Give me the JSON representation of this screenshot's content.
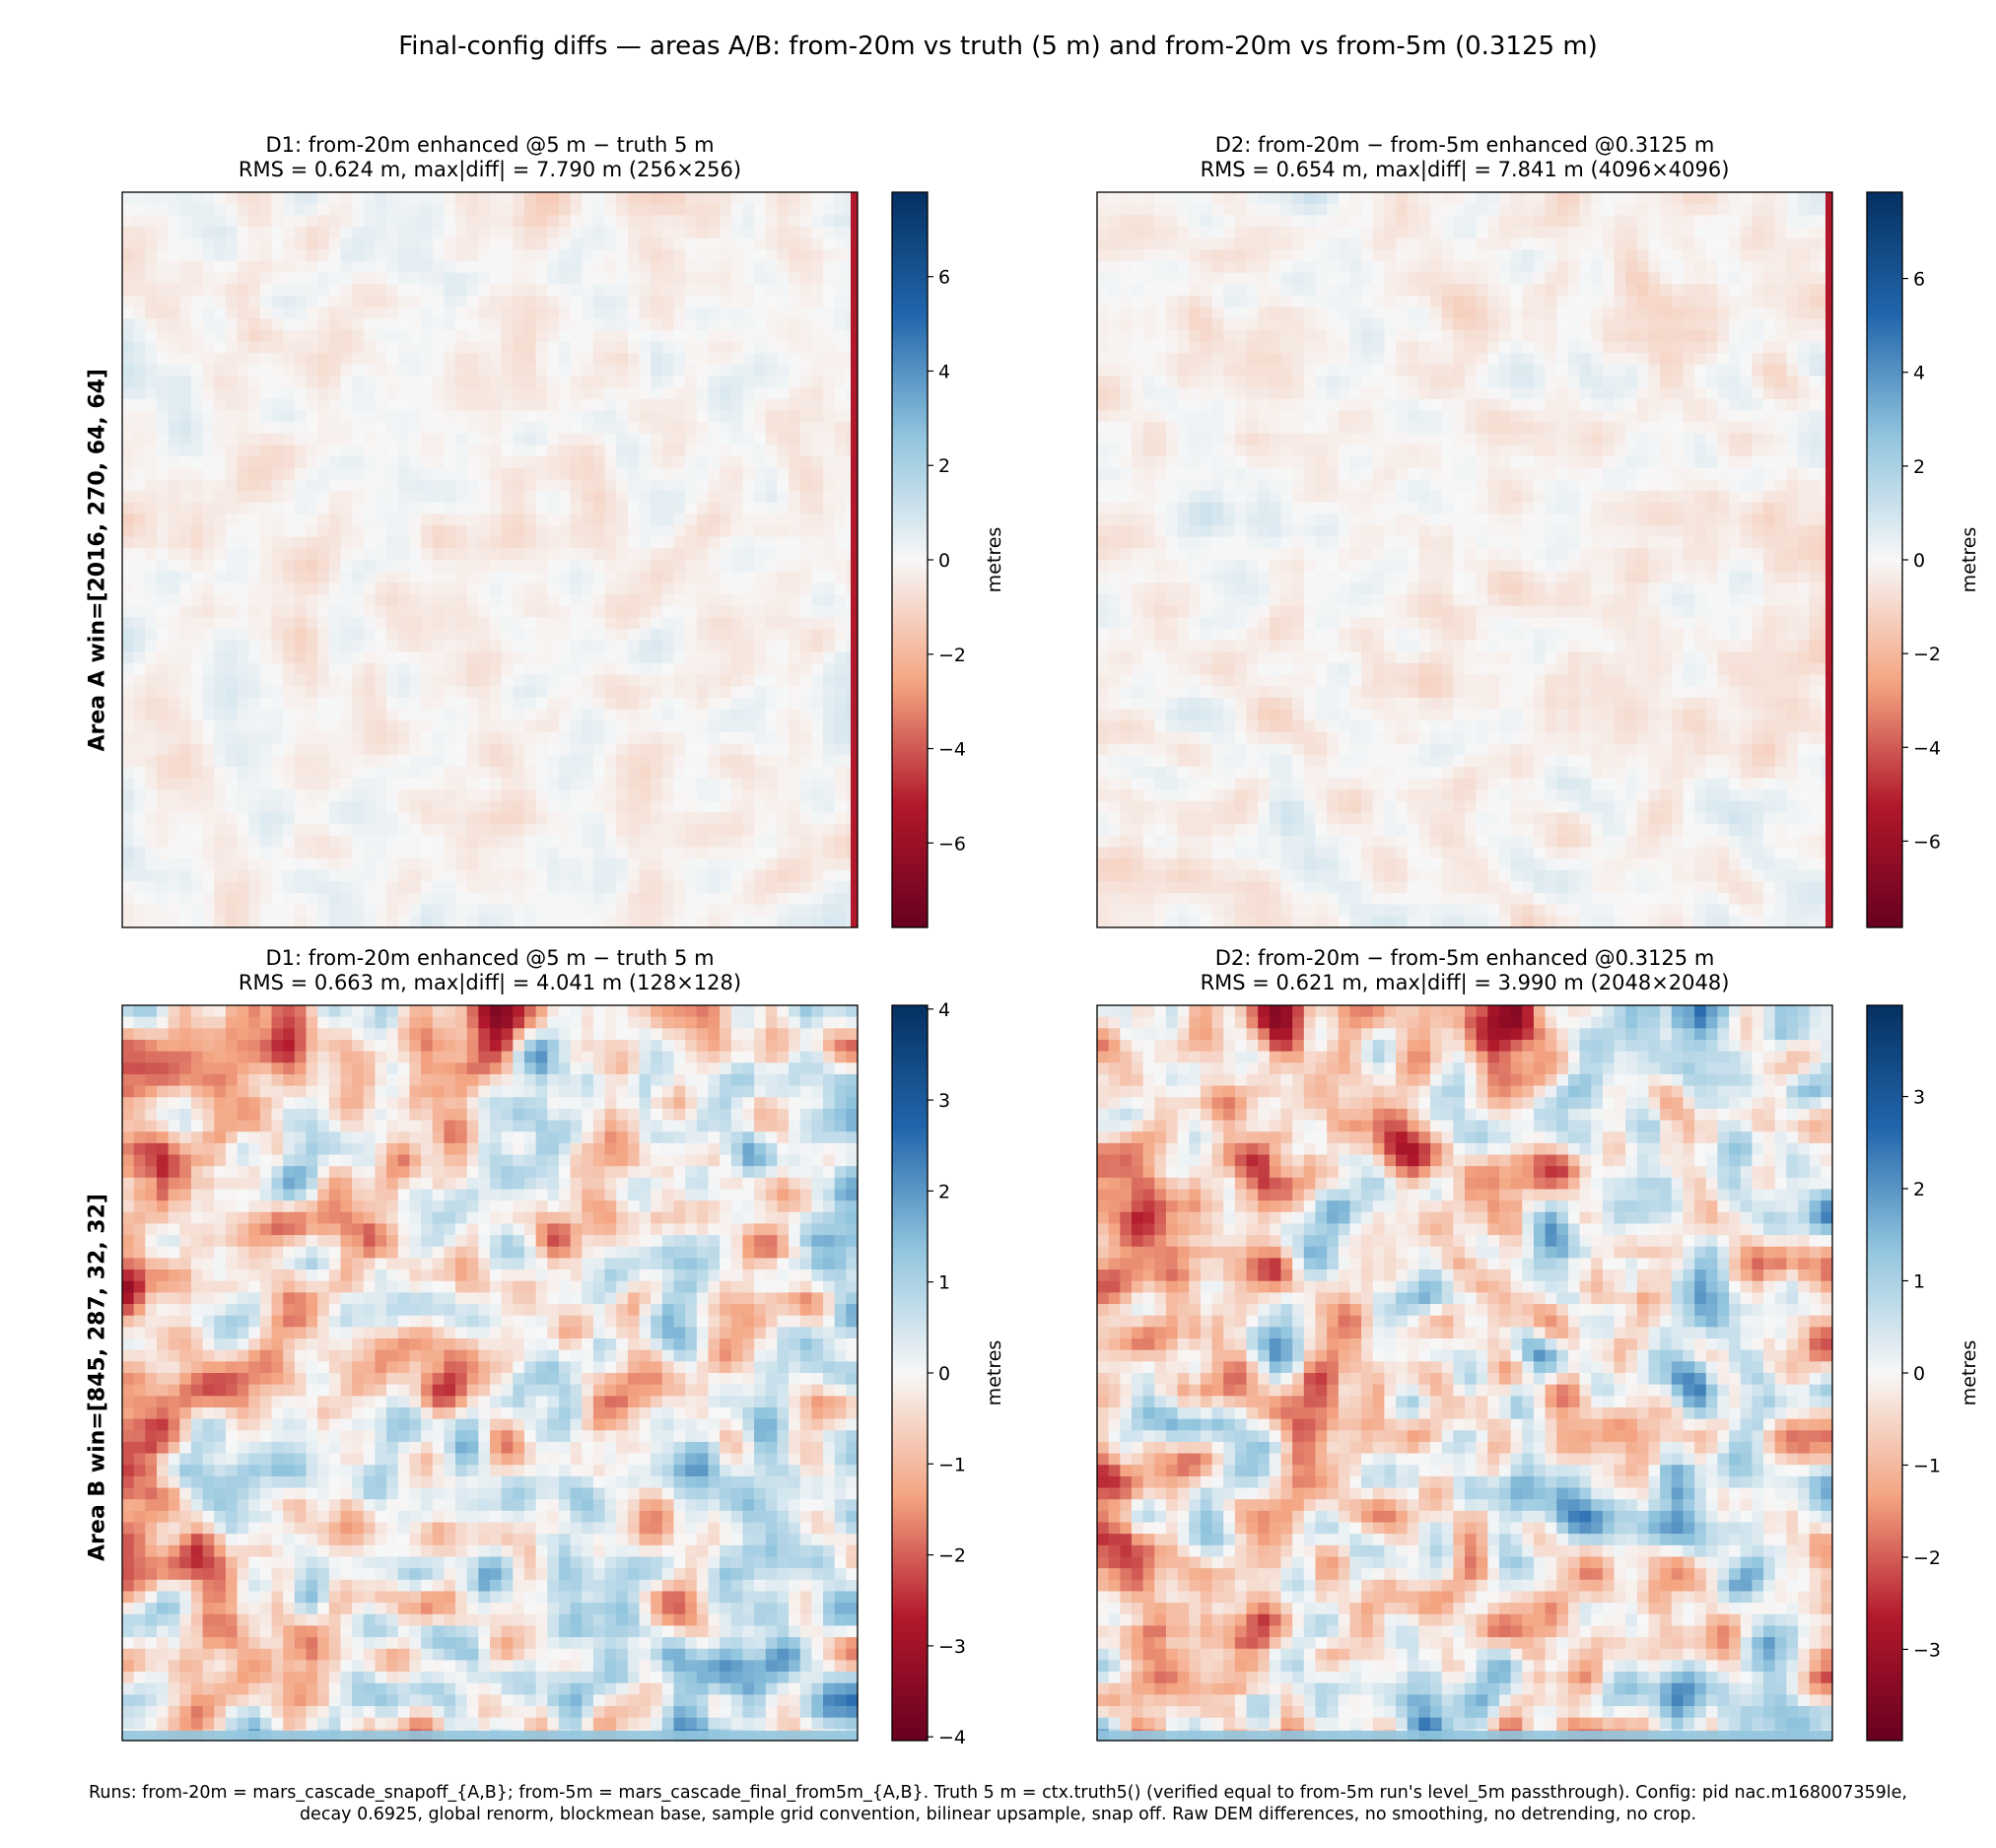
{
  "figure": {
    "suptitle": "Final-config diffs — areas A/B: from-20m vs truth (5 m) and from-20m vs from-5m (0.3125 m)",
    "footer_line1": "Runs: from-20m = mars_cascade_snapoff_{A,B}; from-5m = mars_cascade_final_from5m_{A,B}. Truth 5 m = ctx.truth5() (verified equal to from-5m run's level_5m passthrough). Config: pid nac.m168007359le,",
    "footer_line2": "decay 0.6925, global renorm, blockmean base, sample grid convention, bilinear upsample, snap off. Raw DEM differences, no smoothing, no detrending, no crop."
  },
  "rows": [
    {
      "label": "Area A  win=[2016, 270, 64, 64]"
    },
    {
      "label": "Area B  win=[845, 287, 32, 32]"
    }
  ],
  "chart_data": [
    {
      "type": "heatmap",
      "title_line1": "D1: from-20m enhanced @5 m  −  truth 5 m",
      "title_line2": "RMS = 0.624 m, max|diff| = 7.790 m  (256×256)",
      "grid_size": [
        256,
        256
      ],
      "rms": 0.624,
      "max_abs_diff": 7.79,
      "colormap": "RdBu",
      "color_range": [
        -7.79,
        7.79
      ],
      "colorbar_label": "metres",
      "colorbar_ticks": [
        -6,
        -4,
        -2,
        0,
        2,
        4,
        6
      ],
      "colorbar_tick_labels": [
        "−6",
        "−4",
        "−2",
        "0",
        "2",
        "4",
        "6"
      ]
    },
    {
      "type": "heatmap",
      "title_line1": "D2: from-20m − from-5m enhanced @0.3125 m",
      "title_line2": "RMS = 0.654 m, max|diff| = 7.841 m  (4096×4096)",
      "grid_size": [
        4096,
        4096
      ],
      "rms": 0.654,
      "max_abs_diff": 7.841,
      "colormap": "RdBu",
      "color_range": [
        -7.841,
        7.841
      ],
      "colorbar_label": "metres",
      "colorbar_ticks": [
        -6,
        -4,
        -2,
        0,
        2,
        4,
        6
      ],
      "colorbar_tick_labels": [
        "−6",
        "−4",
        "−2",
        "0",
        "2",
        "4",
        "6"
      ]
    },
    {
      "type": "heatmap",
      "title_line1": "D1: from-20m enhanced @5 m  −  truth 5 m",
      "title_line2": "RMS = 0.663 m, max|diff| = 4.041 m  (128×128)",
      "grid_size": [
        128,
        128
      ],
      "rms": 0.663,
      "max_abs_diff": 4.041,
      "colormap": "RdBu",
      "color_range": [
        -4.041,
        4.041
      ],
      "colorbar_label": "metres",
      "colorbar_ticks": [
        -4,
        -3,
        -2,
        -1,
        0,
        1,
        2,
        3,
        4
      ],
      "colorbar_tick_labels": [
        "−4",
        "−3",
        "−2",
        "−1",
        "0",
        "1",
        "2",
        "3",
        "4"
      ]
    },
    {
      "type": "heatmap",
      "title_line1": "D2: from-20m − from-5m enhanced @0.3125 m",
      "title_line2": "RMS = 0.621 m, max|diff| = 3.990 m  (2048×2048)",
      "grid_size": [
        2048,
        2048
      ],
      "rms": 0.621,
      "max_abs_diff": 3.99,
      "colormap": "RdBu",
      "color_range": [
        -3.99,
        3.99
      ],
      "colorbar_label": "metres",
      "colorbar_ticks": [
        -3,
        -2,
        -1,
        0,
        1,
        2,
        3
      ],
      "colorbar_tick_labels": [
        "−3",
        "−2",
        "−1",
        "0",
        "1",
        "2",
        "3"
      ]
    }
  ],
  "colors": {
    "deep_red": "#67001f",
    "red": "#b2182b",
    "light_red": "#f4a582",
    "white": "#f7f7f7",
    "light_blue": "#92c5de",
    "blue": "#2166ac",
    "deep_blue": "#053061"
  }
}
